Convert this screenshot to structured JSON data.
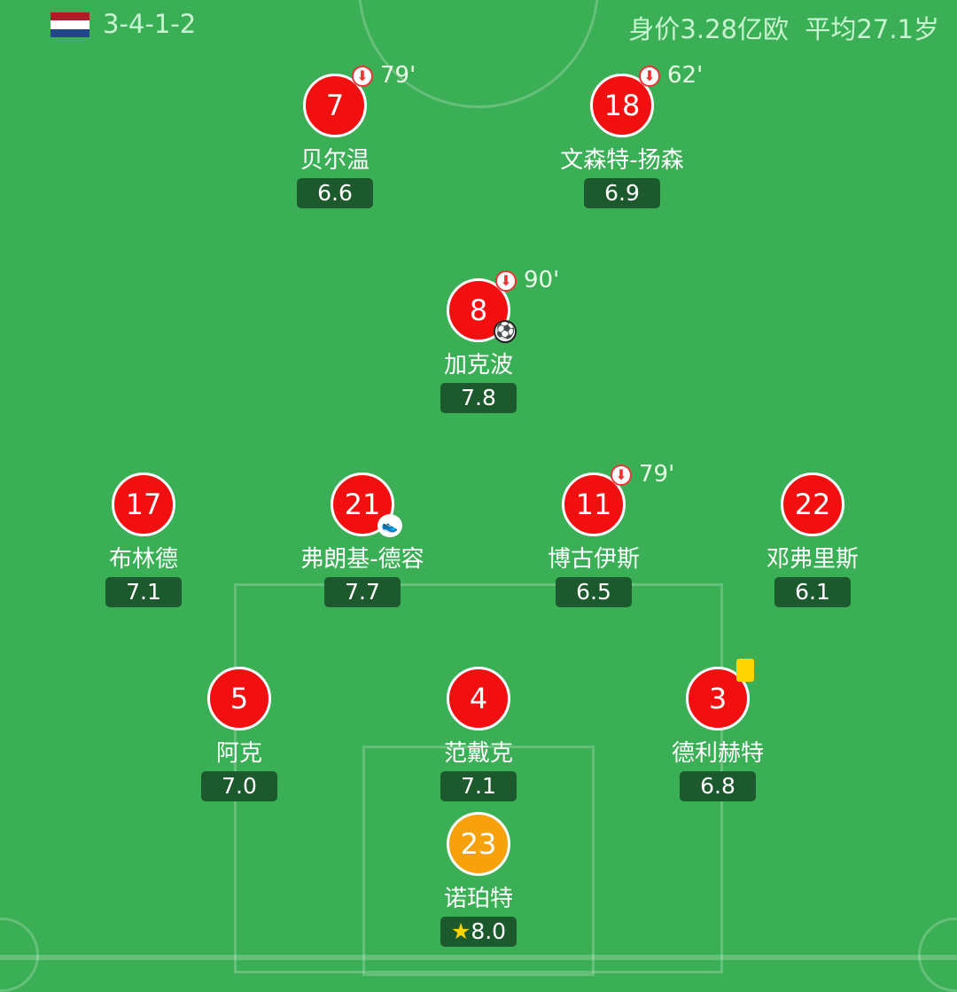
{
  "header": {
    "formation": "3-4-1-2",
    "value": "身价3.28亿欧",
    "avg_age": "平均27.1岁",
    "flag_colors": [
      "#ae1c28",
      "#ffffff",
      "#21468b"
    ]
  },
  "players": [
    {
      "number": "7",
      "name": "贝尔温",
      "rating": "6.6",
      "sub_minute": "79'"
    },
    {
      "number": "18",
      "name": "文森特-扬森",
      "rating": "6.9",
      "sub_minute": "62'"
    },
    {
      "number": "8",
      "name": "加克波",
      "rating": "7.8",
      "sub_minute": "90'",
      "goal": true
    },
    {
      "number": "17",
      "name": "布林德",
      "rating": "7.1"
    },
    {
      "number": "21",
      "name": "弗朗基-德容",
      "rating": "7.7",
      "assist": true
    },
    {
      "number": "11",
      "name": "博古伊斯",
      "rating": "6.5",
      "sub_minute": "79'"
    },
    {
      "number": "22",
      "name": "邓弗里斯",
      "rating": "6.1"
    },
    {
      "number": "5",
      "name": "阿克",
      "rating": "7.0"
    },
    {
      "number": "4",
      "name": "范戴克",
      "rating": "7.1"
    },
    {
      "number": "3",
      "name": "德利赫特",
      "rating": "6.8",
      "yellow_card": true
    },
    {
      "number": "23",
      "name": "诺珀特",
      "rating": "8.0",
      "goalkeeper": true,
      "best_player": true
    }
  ]
}
